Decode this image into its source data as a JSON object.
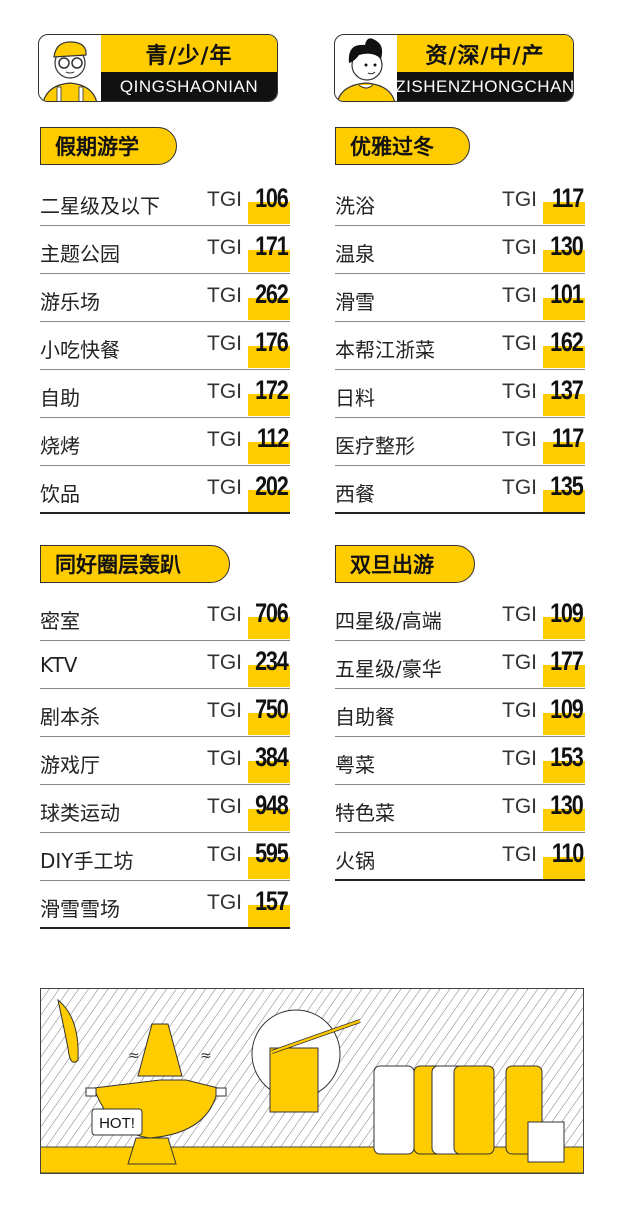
{
  "personas": [
    {
      "title": "青/少/年",
      "subtitle": "QINGSHAONIAN"
    },
    {
      "title": "资/深/中/产",
      "subtitle": "ZISHENZHONGCHAN"
    }
  ],
  "sections": [
    {
      "title": "假期游学",
      "items": [
        {
          "label": "二星级及以下",
          "prefix": "TGI",
          "value": "106"
        },
        {
          "label": "主题公园",
          "prefix": "TGI",
          "value": "171"
        },
        {
          "label": "游乐场",
          "prefix": "TGI",
          "value": "262"
        },
        {
          "label": "小吃快餐",
          "prefix": "TGI",
          "value": "176"
        },
        {
          "label": "自助",
          "prefix": "TGI",
          "value": "172"
        },
        {
          "label": "烧烤",
          "prefix": "TGI",
          "value": "112"
        },
        {
          "label": "饮品",
          "prefix": "TGI",
          "value": "202"
        }
      ]
    },
    {
      "title": "优雅过冬",
      "items": [
        {
          "label": "洗浴",
          "prefix": "TGI",
          "value": "117"
        },
        {
          "label": "温泉",
          "prefix": "TGI",
          "value": "130"
        },
        {
          "label": "滑雪",
          "prefix": "TGI",
          "value": "101"
        },
        {
          "label": "本帮江浙菜",
          "prefix": "TGI",
          "value": "162"
        },
        {
          "label": "日料",
          "prefix": "TGI",
          "value": "137"
        },
        {
          "label": "医疗整形",
          "prefix": "TGI",
          "value": "117"
        },
        {
          "label": "西餐",
          "prefix": "TGI",
          "value": "135"
        }
      ]
    },
    {
      "title": "同好圈层轰趴",
      "items": [
        {
          "label": "密室",
          "prefix": "TGI",
          "value": "706"
        },
        {
          "label": "KTV",
          "prefix": "TGI",
          "value": "234"
        },
        {
          "label": "剧本杀",
          "prefix": "TGI",
          "value": "750"
        },
        {
          "label": "游戏厅",
          "prefix": "TGI",
          "value": "384"
        },
        {
          "label": "球类运动",
          "prefix": "TGI",
          "value": "948"
        },
        {
          "label": "DIY手工坊",
          "prefix": "TGI",
          "value": "595"
        },
        {
          "label": "滑雪雪场",
          "prefix": "TGI",
          "value": "157"
        }
      ]
    },
    {
      "title": "双旦出游",
      "items": [
        {
          "label": "四星级/高端",
          "prefix": "TGI",
          "value": "109"
        },
        {
          "label": "五星级/豪华",
          "prefix": "TGI",
          "value": "177"
        },
        {
          "label": "自助餐",
          "prefix": "TGI",
          "value": "109"
        },
        {
          "label": "粤菜",
          "prefix": "TGI",
          "value": "153"
        },
        {
          "label": "特色菜",
          "prefix": "TGI",
          "value": "130"
        },
        {
          "label": "火锅",
          "prefix": "TGI",
          "value": "110"
        }
      ]
    }
  ],
  "illustration": {
    "speech_bubble": "HOT!"
  },
  "colors": {
    "accent": "#ffcc00",
    "ink": "#111111"
  }
}
